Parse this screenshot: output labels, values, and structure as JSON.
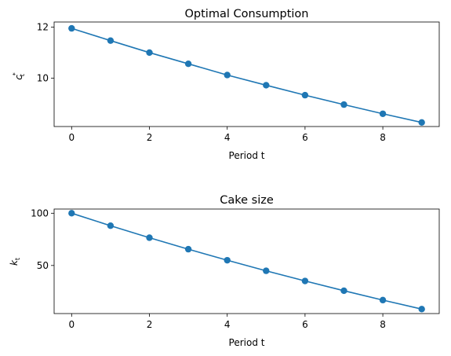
{
  "chart_data": [
    {
      "type": "line",
      "title": "Optimal Consumption",
      "xlabel": "Period t",
      "ylabel": "c*t",
      "xlim": [
        -0.45,
        9.45
      ],
      "ylim": [
        8.1,
        12.2
      ],
      "xticks": [
        0,
        2,
        4,
        6,
        8
      ],
      "yticks": [
        10,
        12
      ],
      "grid": false,
      "marker": "circle",
      "color": "#1f77b4",
      "x": [
        0,
        1,
        2,
        3,
        4,
        5,
        6,
        7,
        8,
        9
      ],
      "series": [
        {
          "values": [
            11.95,
            11.47,
            11.0,
            10.56,
            10.12,
            9.72,
            9.33,
            8.96,
            8.6,
            8.26
          ]
        }
      ]
    },
    {
      "type": "line",
      "title": "Cake size",
      "xlabel": "Period t",
      "ylabel": "kt",
      "xlim": [
        -0.45,
        9.45
      ],
      "ylim": [
        4,
        104
      ],
      "xticks": [
        0,
        2,
        4,
        6,
        8
      ],
      "yticks": [
        50,
        100
      ],
      "grid": false,
      "marker": "circle",
      "color": "#1f77b4",
      "x": [
        0,
        1,
        2,
        3,
        4,
        5,
        6,
        7,
        8,
        9
      ],
      "series": [
        {
          "values": [
            100,
            88.05,
            76.58,
            65.58,
            55.02,
            44.9,
            35.18,
            25.85,
            16.89,
            8.29
          ]
        }
      ]
    }
  ]
}
